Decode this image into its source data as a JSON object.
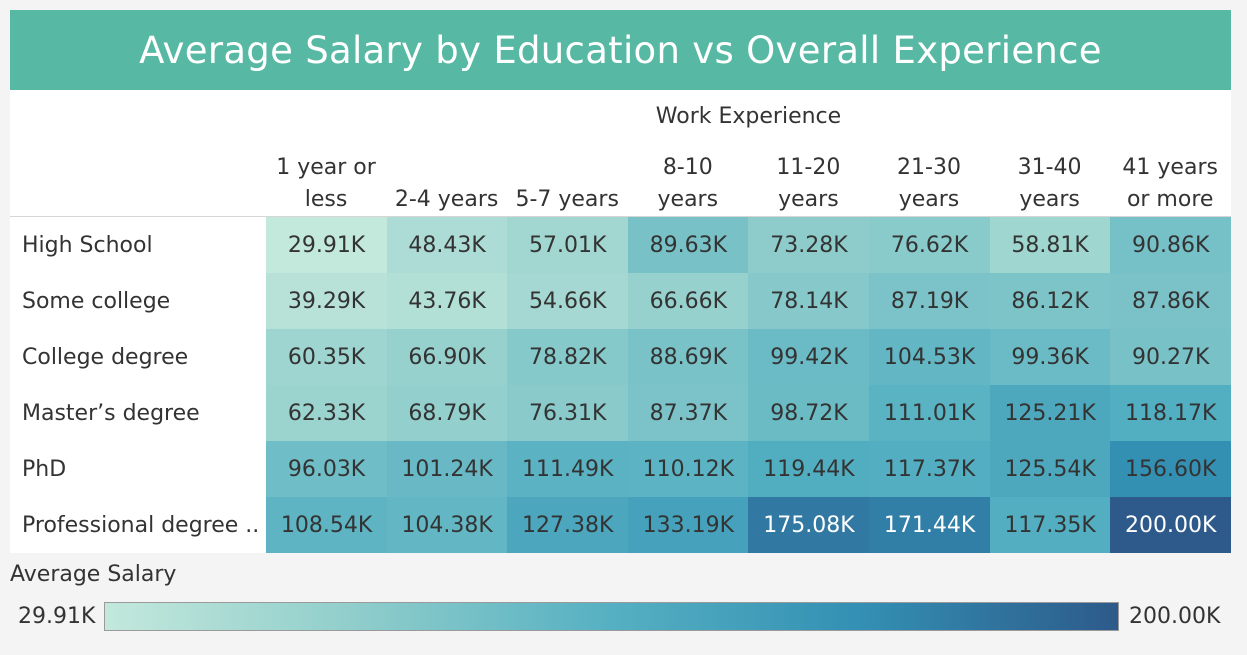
{
  "chart_data": {
    "type": "heatmap",
    "title": "Average Salary by Education vs Overall Experience",
    "column_axis_label": "Work Experience",
    "columns": [
      "1 year or\nless",
      "2-4 years",
      "5-7 years",
      "8-10\nyears",
      "11-20\nyears",
      "21-30\nyears",
      "31-40\nyears",
      "41 years\nor more"
    ],
    "rows": [
      "High School",
      "Some college",
      "College degree",
      "Master’s degree",
      "PhD",
      "Professional degree .."
    ],
    "values": [
      [
        29.91,
        48.43,
        57.01,
        89.63,
        73.28,
        76.62,
        58.81,
        90.86
      ],
      [
        39.29,
        43.76,
        54.66,
        66.66,
        78.14,
        87.19,
        86.12,
        87.86
      ],
      [
        60.35,
        66.9,
        78.82,
        88.69,
        99.42,
        104.53,
        99.36,
        90.27
      ],
      [
        62.33,
        68.79,
        76.31,
        87.37,
        98.72,
        111.01,
        125.21,
        118.17
      ],
      [
        96.03,
        101.24,
        111.49,
        110.12,
        119.44,
        117.37,
        125.54,
        156.6
      ],
      [
        108.54,
        104.38,
        127.38,
        133.19,
        175.08,
        171.44,
        117.35,
        200.0
      ]
    ],
    "value_labels": [
      [
        "29.91K",
        "48.43K",
        "57.01K",
        "89.63K",
        "73.28K",
        "76.62K",
        "58.81K",
        "90.86K"
      ],
      [
        "39.29K",
        "43.76K",
        "54.66K",
        "66.66K",
        "78.14K",
        "87.19K",
        "86.12K",
        "87.86K"
      ],
      [
        "60.35K",
        "66.90K",
        "78.82K",
        "88.69K",
        "99.42K",
        "104.53K",
        "99.36K",
        "90.27K"
      ],
      [
        "62.33K",
        "68.79K",
        "76.31K",
        "87.37K",
        "98.72K",
        "111.01K",
        "125.21K",
        "118.17K"
      ],
      [
        "96.03K",
        "101.24K",
        "111.49K",
        "110.12K",
        "119.44K",
        "117.37K",
        "125.54K",
        "156.60K"
      ],
      [
        "108.54K",
        "104.38K",
        "127.38K",
        "133.19K",
        "175.08K",
        "171.44K",
        "117.35K",
        "200.00K"
      ]
    ],
    "color_scale": {
      "min": 29.91,
      "max": 200.0,
      "colors": [
        "#c3e8dc",
        "#8fcdcb",
        "#55b0c2",
        "#338fb3",
        "#2d5a8a"
      ]
    }
  },
  "legend": {
    "title": "Average Salary",
    "min_label": "29.91K",
    "max_label": "200.00K"
  },
  "colors": {
    "header_bg": "#57b8a3",
    "light_text": "#ffffff",
    "dark_text": "#333333"
  }
}
